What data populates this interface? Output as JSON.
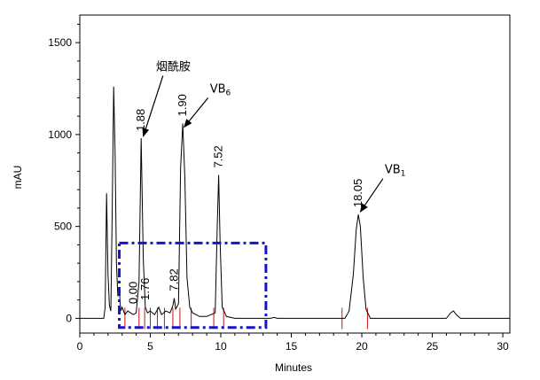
{
  "chart_data": {
    "type": "line",
    "title": "",
    "xlabel": "Minutes",
    "ylabel": "mAU",
    "xlim": [
      0,
      30.5
    ],
    "ylim": [
      -80,
      1650
    ],
    "x_ticks": [
      0,
      5,
      10,
      15,
      20,
      25,
      30
    ],
    "y_ticks": [
      0,
      500,
      1000,
      1500
    ],
    "grid": false,
    "trace": [
      [
        0,
        0
      ],
      [
        1.7,
        0
      ],
      [
        1.8,
        60
      ],
      [
        1.9,
        680
      ],
      [
        2.0,
        240
      ],
      [
        2.1,
        70
      ],
      [
        2.2,
        40
      ],
      [
        2.3,
        600
      ],
      [
        2.4,
        1260
      ],
      [
        2.5,
        900
      ],
      [
        2.6,
        300
      ],
      [
        2.7,
        120
      ],
      [
        2.8,
        160
      ],
      [
        2.9,
        40
      ],
      [
        3.0,
        60
      ],
      [
        3.2,
        20
      ],
      [
        3.4,
        40
      ],
      [
        3.6,
        30
      ],
      [
        3.8,
        20
      ],
      [
        4.0,
        30
      ],
      [
        4.2,
        200
      ],
      [
        4.35,
        980
      ],
      [
        4.5,
        320
      ],
      [
        4.65,
        60
      ],
      [
        4.8,
        30
      ],
      [
        5.0,
        40
      ],
      [
        5.3,
        20
      ],
      [
        5.6,
        60
      ],
      [
        5.8,
        20
      ],
      [
        6.1,
        40
      ],
      [
        6.4,
        30
      ],
      [
        6.6,
        70
      ],
      [
        6.7,
        110
      ],
      [
        6.8,
        50
      ],
      [
        7.0,
        80
      ],
      [
        7.15,
        820
      ],
      [
        7.3,
        1060
      ],
      [
        7.45,
        760
      ],
      [
        7.6,
        220
      ],
      [
        7.8,
        60
      ],
      [
        8.0,
        30
      ],
      [
        8.5,
        10
      ],
      [
        9.0,
        10
      ],
      [
        9.6,
        30
      ],
      [
        9.75,
        500
      ],
      [
        9.85,
        780
      ],
      [
        9.95,
        420
      ],
      [
        10.1,
        60
      ],
      [
        10.4,
        10
      ],
      [
        11,
        0
      ],
      [
        13.5,
        0
      ],
      [
        13.8,
        5
      ],
      [
        14.0,
        0
      ],
      [
        18.8,
        0
      ],
      [
        19.1,
        40
      ],
      [
        19.4,
        240
      ],
      [
        19.6,
        480
      ],
      [
        19.75,
        565
      ],
      [
        19.9,
        500
      ],
      [
        20.1,
        220
      ],
      [
        20.3,
        50
      ],
      [
        20.6,
        0
      ],
      [
        26.0,
        0
      ],
      [
        26.3,
        30
      ],
      [
        26.5,
        40
      ],
      [
        26.7,
        20
      ],
      [
        27.0,
        0
      ],
      [
        30.5,
        0
      ]
    ],
    "integration_marks": [
      3.2,
      4.2,
      4.6,
      5.0,
      5.5,
      6.0,
      6.6,
      7.1,
      7.9,
      9.5,
      10.2,
      18.6,
      20.4
    ],
    "peak_labels": [
      {
        "x": 4.35,
        "y": 980,
        "text": "1.88"
      },
      {
        "x": 7.3,
        "y": 1060,
        "text": "1.90"
      },
      {
        "x": 9.85,
        "y": 780,
        "text": "7.52"
      },
      {
        "x": 19.75,
        "y": 565,
        "text": "18.05"
      },
      {
        "x": 3.8,
        "y": 40,
        "text": "0.00"
      },
      {
        "x": 4.65,
        "y": 60,
        "text": "1.76"
      },
      {
        "x": 6.7,
        "y": 110,
        "text": "7.82"
      }
    ],
    "annotations": [
      {
        "text": "烟酰胺",
        "x_from": 5.9,
        "y_from": 1320,
        "x_to": 4.5,
        "y_to": 990
      },
      {
        "text": "VB",
        "sub": "6",
        "x_from": 9.1,
        "y_from": 1200,
        "x_to": 7.4,
        "y_to": 1040
      },
      {
        "text": "VB",
        "sub": "1",
        "x_from": 21.5,
        "y_from": 760,
        "x_to": 19.9,
        "y_to": 580
      }
    ],
    "box": {
      "x": [
        2.8,
        13.2
      ],
      "y": [
        -50,
        410
      ],
      "color": "#1515cc"
    },
    "trace_color": "#000000",
    "mark_color": "#cc1111"
  }
}
